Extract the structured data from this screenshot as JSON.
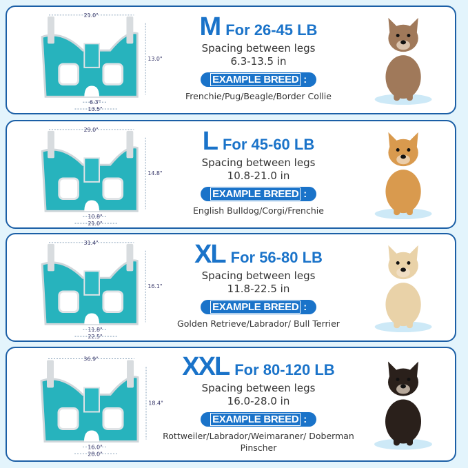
{
  "cards": [
    {
      "size": "M",
      "weight": "For 26-45 LB",
      "spacing_label": "Spacing between legs",
      "spacing": "6.3-13.5 in",
      "badge": "EXAMPLE BREED",
      "breeds": "Frenchie/Pug/Beagle/Border Collie",
      "dims": {
        "width": "21.0\"",
        "height": "13.0\"",
        "inner": "6.3\"",
        "outer": "13.5\""
      },
      "dog": "french-bulldog",
      "dog_color": "#a0795a"
    },
    {
      "size": "L",
      "weight": "For 45-60 LB",
      "spacing_label": "Spacing between legs",
      "spacing": "10.8-21.0 in",
      "badge": "EXAMPLE BREED",
      "breeds": "English Bulldog/Corgi/Frenchie",
      "dims": {
        "width": "29.0\"",
        "height": "14.8\"",
        "inner": "10.8\"",
        "outer": "21.0\""
      },
      "dog": "corgi",
      "dog_color": "#d99a4e"
    },
    {
      "size": "XL",
      "weight": "For 56-80 LB",
      "spacing_label": "Spacing between legs",
      "spacing": "11.8-22.5 in",
      "badge": "EXAMPLE BREED",
      "breeds": "Golden Retrieve/Labrador/ Bull Terrier",
      "dims": {
        "width": "31.4\"",
        "height": "16.1\"",
        "inner": "11.8\"",
        "outer": "22.5\""
      },
      "dog": "golden-retriever",
      "dog_color": "#e9d2a8"
    },
    {
      "size": "XXL",
      "weight": "For 80-120 LB",
      "spacing_label": "Spacing between legs",
      "spacing": "16.0-28.0 in",
      "badge": "EXAMPLE BREED",
      "breeds": "Rottweiler/Labrador/Weimaraner/ Doberman Pinscher",
      "dims": {
        "width": "36.9\"",
        "height": "18.4\"",
        "inner": "16.0\"",
        "outer": "28.0\""
      },
      "dog": "rottweiler",
      "dog_color": "#2a201b"
    }
  ],
  "colors": {
    "accent": "#1a73c9",
    "border": "#1b5fa6",
    "sling": "#27b3bd",
    "background": "#e3f4fc"
  }
}
